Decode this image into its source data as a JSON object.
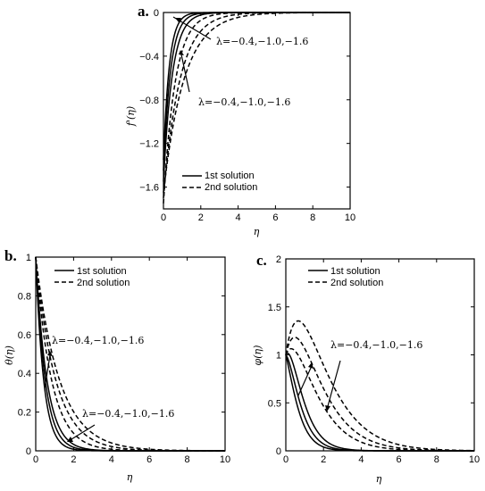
{
  "chart_data": [
    {
      "type": "line",
      "panel_label": "a.",
      "xlabel": "η",
      "ylabel": "f'(η)",
      "xlim": [
        0,
        10
      ],
      "ylim": [
        -1.8,
        0
      ],
      "xticks": [
        0,
        2,
        4,
        6,
        8,
        10
      ],
      "yticks": [
        -1.6,
        -1.2,
        -0.8,
        -0.4,
        0
      ],
      "ytick_labels": [
        "−1.6",
        "−1.2",
        "−0.8",
        "−0.4",
        "0"
      ],
      "legend": {
        "position": "bottom-left",
        "entries": [
          "1st solution",
          "2nd solution"
        ]
      },
      "annotations": [
        "λ=−0.4,−1.0,−1.6",
        "λ=−0.4,−1.0,−1.6"
      ],
      "series": [
        {
          "style": "solid",
          "kind": "decay",
          "a": -1.35,
          "k": 3.2
        },
        {
          "style": "solid",
          "kind": "decay",
          "a": -1.45,
          "k": 2.6
        },
        {
          "style": "solid",
          "kind": "decay",
          "a": -1.55,
          "k": 2.1
        },
        {
          "style": "dashed",
          "kind": "decay",
          "a": -1.75,
          "k": 1.6
        },
        {
          "style": "dashed",
          "kind": "decay",
          "a": -1.7,
          "k": 1.15
        },
        {
          "style": "dashed",
          "kind": "decay",
          "a": -1.65,
          "k": 0.9
        }
      ]
    },
    {
      "type": "line",
      "panel_label": "b.",
      "xlabel": "η",
      "ylabel": "θ(η)",
      "xlim": [
        0,
        10
      ],
      "ylim": [
        0,
        1
      ],
      "xticks": [
        0,
        2,
        4,
        6,
        8,
        10
      ],
      "yticks": [
        0,
        0.2,
        0.4,
        0.6,
        0.8,
        1
      ],
      "ytick_labels": [
        "0",
        "0.2",
        "0.4",
        "0.6",
        "0.8",
        "1"
      ],
      "legend": {
        "position": "top-right",
        "entries": [
          "1st solution",
          "2nd solution"
        ]
      },
      "annotations": [
        "λ=−0.4,−1.0,−1.6",
        "λ=−0.4,−1.0,−1.6"
      ],
      "series": [
        {
          "style": "solid",
          "kind": "decay",
          "a": 1.0,
          "k": 2.4
        },
        {
          "style": "solid",
          "kind": "decay",
          "a": 1.0,
          "k": 2.0
        },
        {
          "style": "solid",
          "kind": "decay",
          "a": 1.0,
          "k": 1.7
        },
        {
          "style": "dashed",
          "kind": "decay",
          "a": 1.0,
          "k": 1.2
        },
        {
          "style": "dashed",
          "kind": "decay",
          "a": 1.0,
          "k": 0.95
        },
        {
          "style": "dashed",
          "kind": "decay",
          "a": 1.0,
          "k": 0.8
        }
      ]
    },
    {
      "type": "line",
      "panel_label": "c.",
      "xlabel": "η",
      "ylabel": "φ(η)",
      "xlim": [
        0,
        10
      ],
      "ylim": [
        0,
        2
      ],
      "xticks": [
        0,
        2,
        4,
        6,
        8,
        10
      ],
      "yticks": [
        0,
        0.5,
        1,
        1.5,
        2
      ],
      "ytick_labels": [
        "0",
        "0.5",
        "1",
        "1.5",
        "2"
      ],
      "legend": {
        "position": "top-right",
        "entries": [
          "1st solution",
          "2nd solution"
        ]
      },
      "annotations": [
        "λ=−0.4,−1.0,−1.6"
      ],
      "series": [
        {
          "style": "solid",
          "kind": "hump",
          "a": 1.0,
          "c": 1.5,
          "k": 2.3
        },
        {
          "style": "solid",
          "kind": "hump",
          "a": 1.0,
          "c": 1.9,
          "k": 2.1
        },
        {
          "style": "solid",
          "kind": "hump",
          "a": 1.0,
          "c": 2.3,
          "k": 1.9
        },
        {
          "style": "dashed",
          "kind": "hump",
          "a": 1.0,
          "c": 1.6,
          "k": 1.1
        },
        {
          "style": "dashed",
          "kind": "hump",
          "a": 1.0,
          "c": 1.9,
          "k": 1.0
        },
        {
          "style": "dashed",
          "kind": "hump",
          "a": 1.0,
          "c": 2.2,
          "k": 0.9
        }
      ]
    }
  ]
}
